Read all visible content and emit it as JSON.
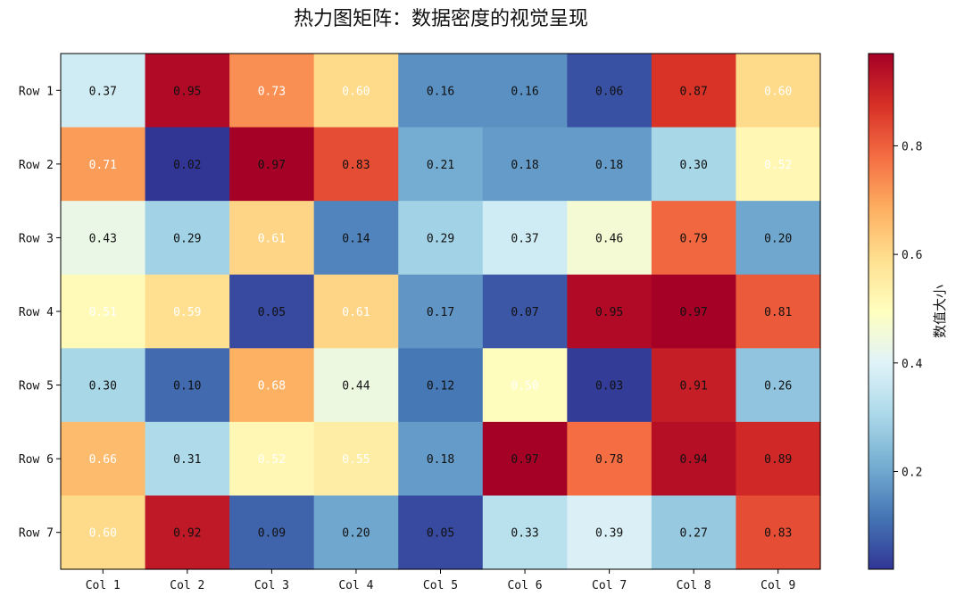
{
  "chart_data": {
    "type": "heatmap",
    "title": "热力图矩阵：数据密度的视觉呈现",
    "rows": [
      "Row 1",
      "Row 2",
      "Row 3",
      "Row 4",
      "Row 5",
      "Row 6",
      "Row 7"
    ],
    "cols": [
      "Col 1",
      "Col 2",
      "Col 3",
      "Col 4",
      "Col 5",
      "Col 6",
      "Col 7",
      "Col 8",
      "Col 9"
    ],
    "values": [
      [
        0.37,
        0.95,
        0.73,
        0.6,
        0.16,
        0.16,
        0.06,
        0.87,
        0.6
      ],
      [
        0.71,
        0.02,
        0.97,
        0.83,
        0.21,
        0.18,
        0.18,
        0.3,
        0.52
      ],
      [
        0.43,
        0.29,
        0.61,
        0.14,
        0.29,
        0.37,
        0.46,
        0.79,
        0.2
      ],
      [
        0.51,
        0.59,
        0.05,
        0.61,
        0.17,
        0.07,
        0.95,
        0.97,
        0.81
      ],
      [
        0.3,
        0.1,
        0.68,
        0.44,
        0.12,
        0.5,
        0.03,
        0.91,
        0.26
      ],
      [
        0.66,
        0.31,
        0.52,
        0.55,
        0.18,
        0.97,
        0.78,
        0.94,
        0.89
      ],
      [
        0.6,
        0.92,
        0.09,
        0.2,
        0.05,
        0.33,
        0.39,
        0.27,
        0.83
      ]
    ],
    "value_range": [
      0.02,
      0.97
    ],
    "colormap": "RdYlBu_r",
    "colorbar": {
      "label": "数值大小",
      "ticks": [
        0.2,
        0.4,
        0.6,
        0.8
      ],
      "tick_labels": [
        "0.2",
        "0.4",
        "0.6",
        "0.8"
      ],
      "placement": "right"
    },
    "annotations": "cell values shown with two decimals"
  }
}
